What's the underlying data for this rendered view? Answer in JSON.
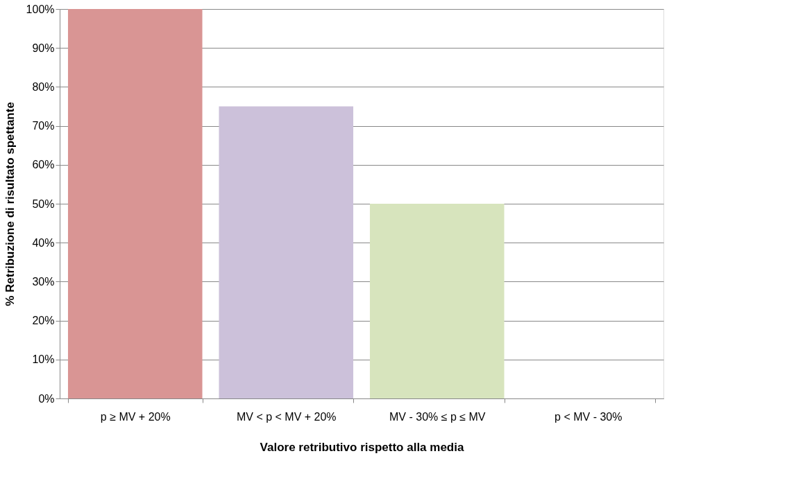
{
  "chart_data": {
    "type": "bar",
    "xlabel": "Valore retributivo rispetto alla media",
    "ylabel": "% Retribuzione di risultato spettante",
    "categories": [
      "p ≥ MV + 20%",
      "MV < p < MV + 20%",
      "MV - 30% ≤ p ≤ MV",
      "p < MV - 30%"
    ],
    "values": [
      100,
      75,
      50,
      0
    ],
    "colors": [
      "#d99594",
      "#ccc1da",
      "#d7e4bd",
      "#b9cde5"
    ],
    "ylim": [
      0,
      100
    ],
    "yticks": [
      {
        "value": 0,
        "label": "0%"
      },
      {
        "value": 10,
        "label": "10%"
      },
      {
        "value": 20,
        "label": "20%"
      },
      {
        "value": 30,
        "label": "30%"
      },
      {
        "value": 40,
        "label": "40%"
      },
      {
        "value": 50,
        "label": "50%"
      },
      {
        "value": 60,
        "label": "60%"
      },
      {
        "value": 70,
        "label": "70%"
      },
      {
        "value": 80,
        "label": "80%"
      },
      {
        "value": 90,
        "label": "90%"
      },
      {
        "value": 100,
        "label": "100%"
      }
    ],
    "grid": "y"
  }
}
